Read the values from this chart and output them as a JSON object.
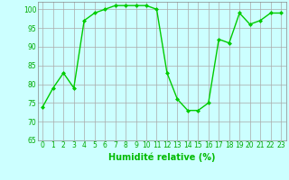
{
  "x": [
    0,
    1,
    2,
    3,
    4,
    5,
    6,
    7,
    8,
    9,
    10,
    11,
    12,
    13,
    14,
    15,
    16,
    17,
    18,
    19,
    20,
    21,
    22,
    23
  ],
  "y": [
    74,
    79,
    83,
    79,
    97,
    99,
    100,
    101,
    101,
    101,
    101,
    100,
    83,
    76,
    73,
    73,
    75,
    92,
    91,
    99,
    96,
    97,
    99,
    99
  ],
  "line_color": "#00cc00",
  "marker_color": "#00cc00",
  "bg_color": "#ccffff",
  "grid_color": "#aaaaaa",
  "xlabel": "Humidité relative (%)",
  "xlabel_color": "#00bb00",
  "tick_color": "#00aa00",
  "ylim": [
    65,
    102
  ],
  "yticks": [
    65,
    70,
    75,
    80,
    85,
    90,
    95,
    100
  ],
  "xticks": [
    0,
    1,
    2,
    3,
    4,
    5,
    6,
    7,
    8,
    9,
    10,
    11,
    12,
    13,
    14,
    15,
    16,
    17,
    18,
    19,
    20,
    21,
    22,
    23
  ],
  "tick_fontsize": 5.5,
  "xlabel_fontsize": 7.0
}
